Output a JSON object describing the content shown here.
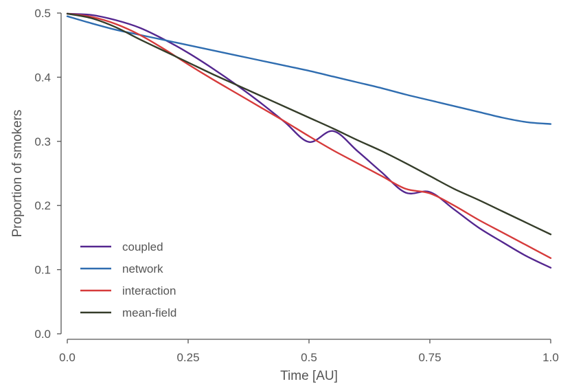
{
  "chart_data": {
    "type": "line",
    "title": "",
    "xlabel": "Time [AU]",
    "ylabel": "Proportion of smokers",
    "xlim": [
      0,
      1
    ],
    "ylim": [
      0,
      0.5
    ],
    "xticks": [
      {
        "value": 0,
        "label": "0.0"
      },
      {
        "value": 0.25,
        "label": "0.25"
      },
      {
        "value": 0.5,
        "label": "0.5"
      },
      {
        "value": 0.75,
        "label": "0.75"
      },
      {
        "value": 1,
        "label": "1.0"
      }
    ],
    "yticks": [
      {
        "value": 0,
        "label": "0.0"
      },
      {
        "value": 0.1,
        "label": "0.1"
      },
      {
        "value": 0.2,
        "label": "0.2"
      },
      {
        "value": 0.3,
        "label": "0.3"
      },
      {
        "value": 0.4,
        "label": "0.4"
      },
      {
        "value": 0.5,
        "label": "0.5"
      }
    ],
    "grid": false,
    "legend_position": "bottom-left",
    "x": [
      0,
      0.05,
      0.1,
      0.15,
      0.2,
      0.25,
      0.3,
      0.35,
      0.4,
      0.45,
      0.5,
      0.55,
      0.6,
      0.65,
      0.7,
      0.75,
      0.8,
      0.85,
      0.9,
      0.95,
      1.0
    ],
    "series": [
      {
        "name": "coupled",
        "color": "#54278f",
        "values": [
          0.499,
          0.497,
          0.489,
          0.477,
          0.459,
          0.438,
          0.414,
          0.388,
          0.36,
          0.33,
          0.299,
          0.316,
          0.285,
          0.252,
          0.22,
          0.221,
          0.194,
          0.166,
          0.143,
          0.121,
          0.103
        ]
      },
      {
        "name": "network",
        "color": "#2f6db0",
        "values": [
          0.495,
          0.484,
          0.474,
          0.466,
          0.458,
          0.45,
          0.442,
          0.434,
          0.426,
          0.418,
          0.41,
          0.401,
          0.392,
          0.383,
          0.373,
          0.364,
          0.355,
          0.346,
          0.337,
          0.33,
          0.327
        ]
      },
      {
        "name": "interaction",
        "color": "#d63b3b",
        "values": [
          0.499,
          0.494,
          0.483,
          0.466,
          0.444,
          0.42,
          0.397,
          0.375,
          0.353,
          0.331,
          0.308,
          0.286,
          0.266,
          0.246,
          0.226,
          0.219,
          0.2,
          0.178,
          0.158,
          0.138,
          0.118
        ]
      },
      {
        "name": "mean-field",
        "color": "#353d2a",
        "values": [
          0.499,
          0.492,
          0.478,
          0.459,
          0.441,
          0.423,
          0.405,
          0.388,
          0.371,
          0.354,
          0.337,
          0.32,
          0.302,
          0.285,
          0.266,
          0.246,
          0.226,
          0.209,
          0.191,
          0.173,
          0.155
        ]
      }
    ]
  }
}
